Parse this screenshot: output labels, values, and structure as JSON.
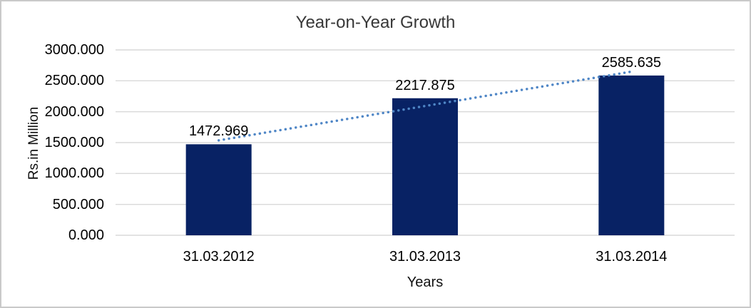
{
  "chart_data": {
    "type": "bar",
    "title": "Year-on-Year Growth",
    "xlabel": "Years",
    "ylabel": "Rs.in Million",
    "categories": [
      "31.03.2012",
      "31.03.2013",
      "31.03.2014"
    ],
    "values": [
      1472.969,
      2217.875,
      2585.635
    ],
    "value_labels": [
      "1472.969",
      "2217.875",
      "2585.635"
    ],
    "y_ticks": [
      0,
      500,
      1000,
      1500,
      2000,
      2500,
      3000
    ],
    "y_tick_labels": [
      "0.000",
      "500.000",
      "1000.000",
      "1500.000",
      "2000.000",
      "2500.000",
      "3000.000"
    ],
    "ylim": [
      0,
      3000
    ],
    "grid": true,
    "legend_position": "none",
    "trendline": {
      "type": "linear",
      "style": "dotted"
    },
    "colors": {
      "bar_fill": "#082264",
      "trendline": "#4f86c6",
      "gridline": "#d9d9d9",
      "title_text": "#383838",
      "axis_text": "#000000",
      "frame_border": "#c9c9c9"
    }
  }
}
